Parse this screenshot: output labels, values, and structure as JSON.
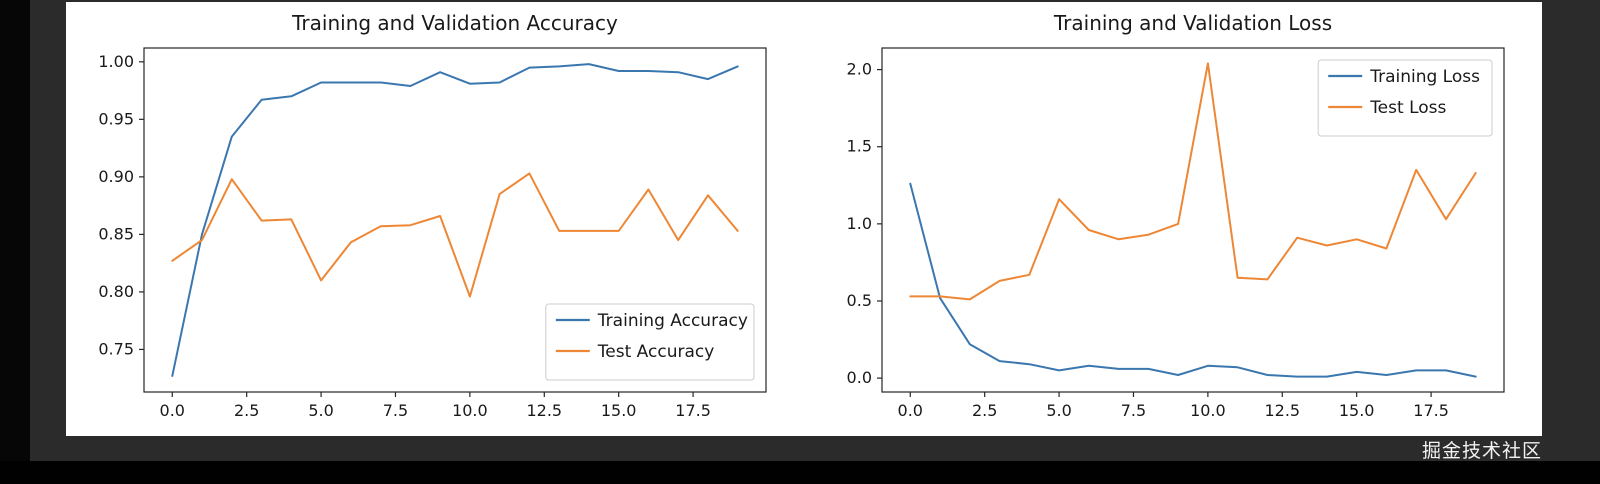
{
  "page": {
    "watermark": "掘金技术社区"
  },
  "colors": {
    "training": "#3b77af",
    "test": "#ee8735",
    "spine": "#262626",
    "text": "#1a1a1a",
    "figure_bg": "#ffffff",
    "panel_bg": "#2b2b2b",
    "outer_bg": "#060606",
    "legend_border": "#cccccc"
  },
  "chart_data": [
    {
      "type": "line",
      "title": "Training and Validation Accuracy",
      "xlabel": "",
      "ylabel": "",
      "grid": false,
      "x": [
        0,
        1,
        2,
        3,
        4,
        5,
        6,
        7,
        8,
        9,
        10,
        11,
        12,
        13,
        14,
        15,
        16,
        17,
        18,
        19
      ],
      "series": [
        {
          "name": "Training Accuracy",
          "color": "#3b77af",
          "values": [
            0.727,
            0.85,
            0.935,
            0.967,
            0.97,
            0.982,
            0.982,
            0.982,
            0.979,
            0.991,
            0.981,
            0.982,
            0.995,
            0.996,
            0.998,
            0.992,
            0.992,
            0.991,
            0.985,
            0.996
          ]
        },
        {
          "name": "Test Accuracy",
          "color": "#ee8735",
          "values": [
            0.827,
            0.845,
            0.898,
            0.862,
            0.863,
            0.81,
            0.843,
            0.857,
            0.858,
            0.866,
            0.796,
            0.885,
            0.903,
            0.853,
            0.853,
            0.853,
            0.889,
            0.845,
            0.884,
            0.853
          ]
        }
      ],
      "xlim": [
        -0.95,
        19.95
      ],
      "ylim": [
        0.713,
        1.012
      ],
      "xticks": {
        "values": [
          0,
          2.5,
          5,
          7.5,
          10,
          12.5,
          15,
          17.5
        ],
        "labels": [
          "0.0",
          "2.5",
          "5.0",
          "7.5",
          "10.0",
          "12.5",
          "15.0",
          "17.5"
        ]
      },
      "yticks": {
        "values": [
          0.75,
          0.8,
          0.85,
          0.9,
          0.95,
          1.0
        ],
        "labels": [
          "0.75",
          "0.80",
          "0.85",
          "0.90",
          "0.95",
          "1.00"
        ]
      },
      "legend": {
        "position": "lower-right",
        "entries": [
          "Training Accuracy",
          "Test Accuracy"
        ]
      }
    },
    {
      "type": "line",
      "title": "Training and Validation Loss",
      "xlabel": "",
      "ylabel": "",
      "grid": false,
      "x": [
        0,
        1,
        2,
        3,
        4,
        5,
        6,
        7,
        8,
        9,
        10,
        11,
        12,
        13,
        14,
        15,
        16,
        17,
        18,
        19
      ],
      "series": [
        {
          "name": "Training Loss",
          "color": "#3b77af",
          "values": [
            1.26,
            0.52,
            0.22,
            0.11,
            0.09,
            0.05,
            0.08,
            0.06,
            0.06,
            0.02,
            0.08,
            0.07,
            0.02,
            0.01,
            0.01,
            0.04,
            0.02,
            0.05,
            0.05,
            0.01
          ]
        },
        {
          "name": "Test Loss",
          "color": "#ee8735",
          "values": [
            0.53,
            0.53,
            0.51,
            0.63,
            0.67,
            1.16,
            0.96,
            0.9,
            0.93,
            1.0,
            2.04,
            0.65,
            0.64,
            0.91,
            0.86,
            0.9,
            0.84,
            1.35,
            1.03,
            1.33
          ]
        }
      ],
      "xlim": [
        -0.95,
        19.95
      ],
      "ylim": [
        -0.09,
        2.14
      ],
      "xticks": {
        "values": [
          0,
          2.5,
          5,
          7.5,
          10,
          12.5,
          15,
          17.5
        ],
        "labels": [
          "0.0",
          "2.5",
          "5.0",
          "7.5",
          "10.0",
          "12.5",
          "15.0",
          "17.5"
        ]
      },
      "yticks": {
        "values": [
          0.0,
          0.5,
          1.0,
          1.5,
          2.0
        ],
        "labels": [
          "0.0",
          "0.5",
          "1.0",
          "1.5",
          "2.0"
        ]
      },
      "legend": {
        "position": "upper-right",
        "entries": [
          "Training Loss",
          "Test Loss"
        ]
      }
    }
  ]
}
